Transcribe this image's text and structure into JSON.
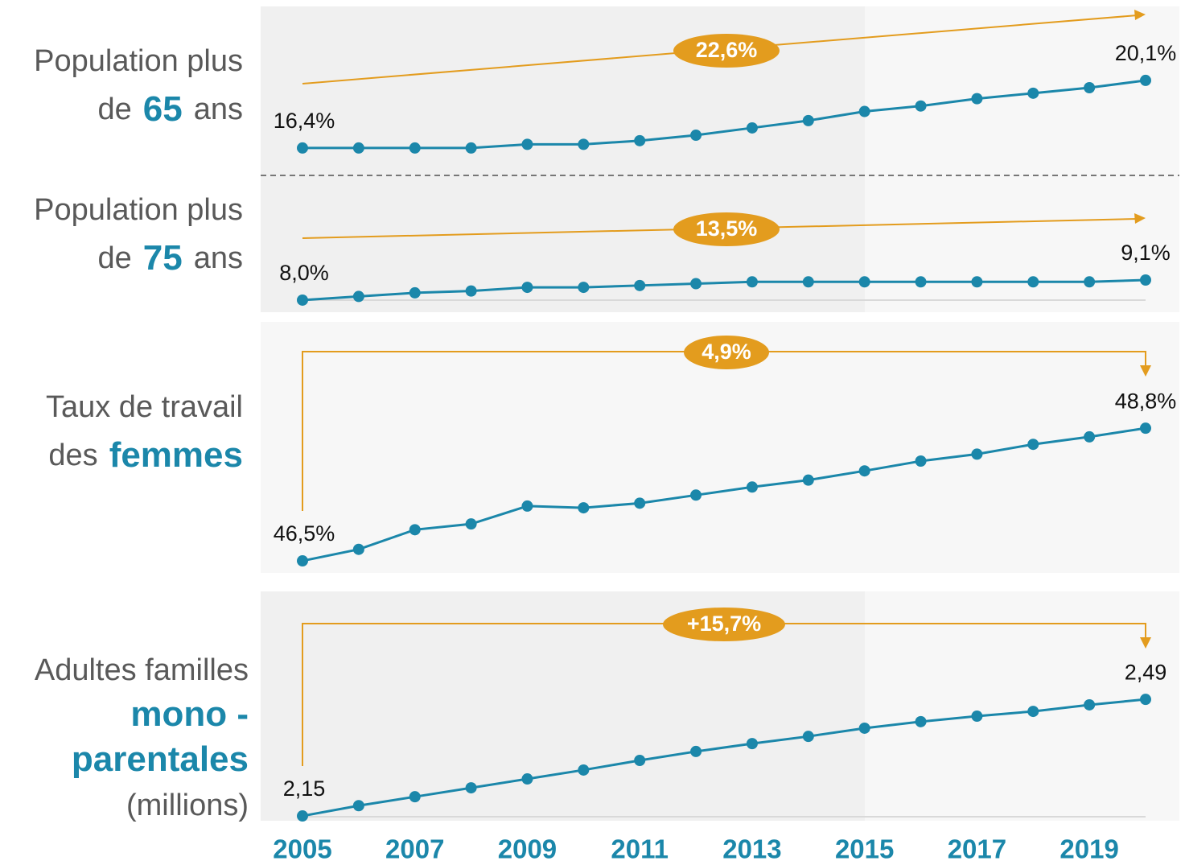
{
  "chart_data": [
    {
      "type": "line",
      "label": [
        [
          {
            "text": "Population plus"
          }
        ],
        [
          {
            "text": "de"
          },
          {
            "text": "65",
            "emph": true
          },
          {
            "text": "ans"
          }
        ]
      ],
      "x": [
        2005,
        2006,
        2007,
        2008,
        2009,
        2010,
        2011,
        2012,
        2013,
        2014,
        2015,
        2016,
        2017,
        2018,
        2019,
        2020
      ],
      "values": [
        16.4,
        16.4,
        16.4,
        16.4,
        16.6,
        16.6,
        16.8,
        17.1,
        17.5,
        17.9,
        18.4,
        18.7,
        19.1,
        19.4,
        19.7,
        20.1
      ],
      "value_labels": [
        "16,4%",
        null,
        null,
        null,
        null,
        null,
        null,
        null,
        null,
        null,
        null,
        null,
        null,
        null,
        null,
        "20,1%"
      ],
      "color": "#1b87aa",
      "xlim": [
        2005,
        2020
      ],
      "ylim": [
        16,
        21
      ],
      "annotation": {
        "text": "22,6%",
        "style": "slope",
        "color": "#e39c1e"
      }
    },
    {
      "type": "line",
      "label": [
        [
          {
            "text": "Population plus"
          }
        ],
        [
          {
            "text": "de"
          },
          {
            "text": "75",
            "emph": true
          },
          {
            "text": "ans"
          }
        ]
      ],
      "x": [
        2005,
        2006,
        2007,
        2008,
        2009,
        2010,
        2011,
        2012,
        2013,
        2014,
        2015,
        2016,
        2017,
        2018,
        2019,
        2020
      ],
      "values": [
        8.0,
        8.2,
        8.4,
        8.5,
        8.7,
        8.7,
        8.8,
        8.9,
        9.0,
        9.0,
        9.0,
        9.0,
        9.0,
        9.0,
        9.0,
        9.1
      ],
      "value_labels": [
        "8,0%",
        null,
        null,
        null,
        null,
        null,
        null,
        null,
        null,
        null,
        null,
        null,
        null,
        null,
        null,
        "9,1%"
      ],
      "color": "#1b87aa",
      "xlim": [
        2005,
        2020
      ],
      "ylim": [
        7.8,
        9.4
      ],
      "annotation": {
        "text": "13,5%",
        "style": "slope",
        "color": "#e39c1e"
      }
    },
    {
      "type": "line",
      "label": [
        [
          {
            "text": "Taux de travail"
          }
        ],
        [
          {
            "text": "des"
          },
          {
            "text": "femmes",
            "emph": true
          }
        ]
      ],
      "x": [
        2005,
        2006,
        2007,
        2008,
        2009,
        2010,
        2011,
        2012,
        2013,
        2014,
        2015,
        2016,
        2017,
        2018,
        2019,
        2020
      ],
      "values": [
        46.5,
        46.7,
        47.04,
        47.14,
        47.45,
        47.42,
        47.5,
        47.64,
        47.78,
        47.9,
        48.06,
        48.23,
        48.35,
        48.52,
        48.65,
        48.8
      ],
      "value_labels": [
        "46,5%",
        null,
        null,
        null,
        null,
        null,
        null,
        null,
        null,
        null,
        null,
        null,
        null,
        null,
        null,
        "48,8%"
      ],
      "color": "#1b87aa",
      "xlim": [
        2005,
        2020
      ],
      "ylim": [
        46.4,
        49
      ],
      "annotation": {
        "text": "4,9%",
        "style": "bracket",
        "color": "#e39c1e"
      }
    },
    {
      "type": "line",
      "label": [
        [
          {
            "text": "Adultes familles"
          }
        ],
        [
          {
            "text": "mono -",
            "emph": true
          }
        ],
        [
          {
            "text": "parentales",
            "emph": true
          }
        ],
        [
          {
            "text": "(millions)"
          }
        ]
      ],
      "x": [
        2005,
        2006,
        2007,
        2008,
        2009,
        2010,
        2011,
        2012,
        2013,
        2014,
        2015,
        2016,
        2017,
        2018,
        2019,
        2020
      ],
      "values": [
        2.15,
        2.18,
        2.206,
        2.232,
        2.258,
        2.284,
        2.312,
        2.338,
        2.361,
        2.382,
        2.406,
        2.425,
        2.441,
        2.455,
        2.474,
        2.49
      ],
      "value_labels": [
        "2,15",
        null,
        null,
        null,
        null,
        null,
        null,
        null,
        null,
        null,
        null,
        null,
        null,
        null,
        null,
        "2,49"
      ],
      "color": "#1b87aa",
      "xlim": [
        2005,
        2020
      ],
      "ylim": [
        2.14,
        2.5
      ],
      "xticks": [
        2005,
        2007,
        2009,
        2011,
        2013,
        2015,
        2017,
        2019
      ],
      "annotation": {
        "text": "+15,7%",
        "style": "bracket",
        "color": "#e39c1e"
      }
    }
  ]
}
